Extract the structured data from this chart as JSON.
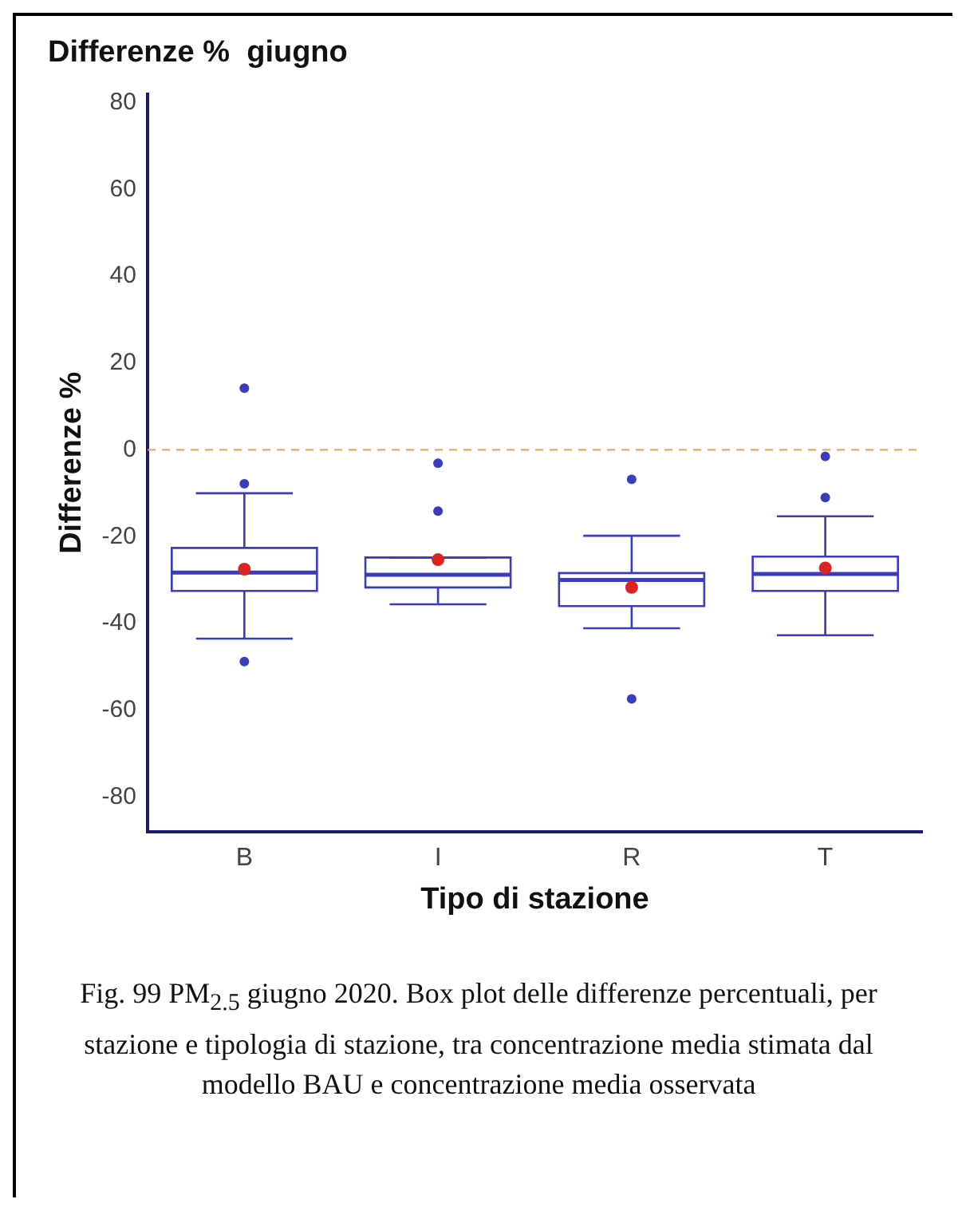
{
  "chart_data": {
    "type": "box",
    "title": "Differenze %  giugno",
    "xlabel": "Tipo di stazione",
    "ylabel": "Differenze %",
    "categories": [
      "B",
      "I",
      "R",
      "T"
    ],
    "boxes": [
      {
        "low": -43.5,
        "q1": -32.5,
        "median": -28.3,
        "q3": -22.6,
        "high": -10,
        "mean": -27.5,
        "outliers": [
          14.2,
          -7.8,
          -48.8
        ]
      },
      {
        "low": -35.6,
        "q1": -31.7,
        "median": -28.8,
        "q3": -24.8,
        "high": -24.8,
        "mean": -25.3,
        "outliers": [
          -3.1,
          -14.1
        ]
      },
      {
        "low": -41.1,
        "q1": -36,
        "median": -30,
        "q3": -28.4,
        "high": -19.8,
        "mean": -31.7,
        "outliers": [
          -6.8,
          -57.4
        ]
      },
      {
        "low": -42.7,
        "q1": -32.5,
        "median": -28.6,
        "q3": -24.6,
        "high": -15.3,
        "mean": -27.2,
        "outliers": [
          -1.5,
          -11
        ]
      }
    ],
    "color": "#3b3bbf",
    "ylim": [
      -88,
      82
    ],
    "yticks": [
      -80,
      -60,
      -40,
      -20,
      0,
      20,
      40,
      60,
      80
    ],
    "grid": false,
    "legend": false,
    "ref_lines": [
      {
        "axis": "y",
        "value": 0,
        "color": "#e8a050",
        "line_style": "dashed"
      }
    ],
    "annotations": [
      "Fig. 99 PM$_{2.5}$ giugno 2020. Box plot delle differenze percentuali, per stazione e tipologia di stazione, tra concentrazione media stimata dal modello BAU e concentrazione media osservata"
    ]
  }
}
